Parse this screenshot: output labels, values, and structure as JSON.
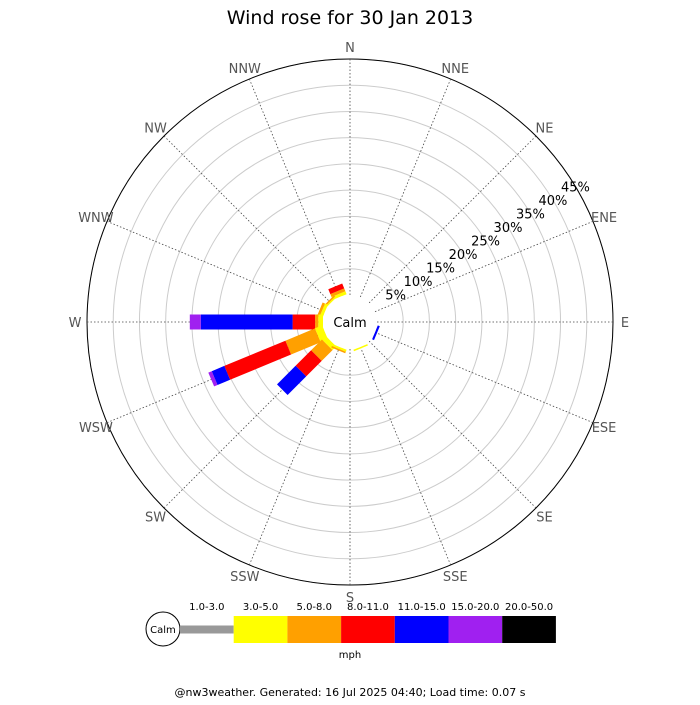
{
  "chart_data": {
    "type": "windrose",
    "title": "Wind rose for 30 Jan 2013",
    "calm_label": "Calm",
    "directions": [
      "N",
      "NNE",
      "NE",
      "ENE",
      "E",
      "ESE",
      "SE",
      "SSE",
      "S",
      "SSW",
      "SW",
      "WSW",
      "W",
      "WNW",
      "NW",
      "NNW"
    ],
    "rings": [
      "5%",
      "10%",
      "15%",
      "20%",
      "25%",
      "30%",
      "35%",
      "40%",
      "45%"
    ],
    "ring_max": 45,
    "units_label": "mph",
    "speed_bins": [
      {
        "label": "1.0-3.0",
        "color": "#999999"
      },
      {
        "label": "3.0-5.0",
        "color": "#ffff00"
      },
      {
        "label": "5.0-8.0",
        "color": "#ffa000"
      },
      {
        "label": "8.0-11.0",
        "color": "#ff0000"
      },
      {
        "label": "11.0-15.0",
        "color": "#0000ff"
      },
      {
        "label": "15.0-20.0",
        "color": "#a020f0"
      },
      {
        "label": "20.0-50.0",
        "color": "#000000"
      }
    ],
    "segments": [
      {
        "direction": "NNW",
        "values": [
          0,
          0.6,
          0.6,
          1.0,
          0,
          0,
          0
        ]
      },
      {
        "direction": "NW",
        "values": [
          0,
          0.3,
          0.3,
          0,
          0,
          0,
          0
        ]
      },
      {
        "direction": "WNW",
        "values": [
          0,
          0.6,
          0.5,
          0,
          0,
          0,
          0
        ]
      },
      {
        "direction": "W",
        "values": [
          0,
          0.9,
          0.6,
          4.3,
          17.5,
          2.1,
          0
        ]
      },
      {
        "direction": "WSW",
        "values": [
          0,
          1.5,
          6.1,
          12.6,
          2.6,
          0.7,
          0
        ]
      },
      {
        "direction": "SW",
        "values": [
          0,
          1.0,
          2.9,
          4.2,
          5.0,
          0,
          0
        ]
      },
      {
        "direction": "SSW",
        "values": [
          0,
          0.4,
          0.3,
          0,
          0,
          0,
          0
        ]
      },
      {
        "direction": "SSE",
        "values": [
          0,
          0.3,
          0,
          0,
          0,
          0,
          0
        ]
      },
      {
        "direction": "ESE",
        "values": [
          0,
          0,
          0,
          0,
          0.4,
          0,
          0
        ]
      }
    ]
  },
  "footer": {
    "text": "@nw3weather.  Generated: 16 Jul 2025 04:40; Load time: 0.07 s"
  }
}
